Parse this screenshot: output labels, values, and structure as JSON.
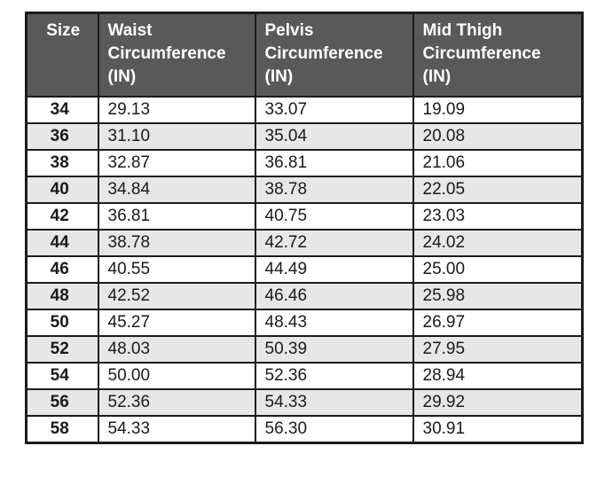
{
  "colors": {
    "header_bg": "#595959",
    "header_text": "#ffffff",
    "row_alt_bg": "#e7e7e7",
    "border": "#1b1b1b",
    "body_text": "#1a1a1a",
    "page_bg": "#ffffff"
  },
  "table": {
    "headers": {
      "size": "Size",
      "waist": "Waist\nCircumference\n(IN)",
      "pelvis": "Pelvis\nCircumference\n(IN)",
      "mid_thigh": "Mid Thigh\nCircumference\n(IN)"
    },
    "rows": [
      {
        "size": "34",
        "waist": "29.13",
        "pelvis": "33.07",
        "mid_thigh": "19.09"
      },
      {
        "size": "36",
        "waist": "31.10",
        "pelvis": "35.04",
        "mid_thigh": "20.08"
      },
      {
        "size": "38",
        "waist": "32.87",
        "pelvis": "36.81",
        "mid_thigh": "21.06"
      },
      {
        "size": "40",
        "waist": "34.84",
        "pelvis": "38.78",
        "mid_thigh": "22.05"
      },
      {
        "size": "42",
        "waist": "36.81",
        "pelvis": "40.75",
        "mid_thigh": "23.03"
      },
      {
        "size": "44",
        "waist": "38.78",
        "pelvis": "42.72",
        "mid_thigh": "24.02"
      },
      {
        "size": "46",
        "waist": "40.55",
        "pelvis": "44.49",
        "mid_thigh": "25.00"
      },
      {
        "size": "48",
        "waist": "42.52",
        "pelvis": "46.46",
        "mid_thigh": "25.98"
      },
      {
        "size": "50",
        "waist": "45.27",
        "pelvis": "48.43",
        "mid_thigh": "26.97"
      },
      {
        "size": "52",
        "waist": "48.03",
        "pelvis": "50.39",
        "mid_thigh": "27.95"
      },
      {
        "size": "54",
        "waist": "50.00",
        "pelvis": "52.36",
        "mid_thigh": "28.94"
      },
      {
        "size": "56",
        "waist": "52.36",
        "pelvis": "54.33",
        "mid_thigh": "29.92"
      },
      {
        "size": "58",
        "waist": "54.33",
        "pelvis": "56.30",
        "mid_thigh": "30.91"
      }
    ]
  },
  "chart_data": {
    "type": "table",
    "title": "",
    "columns": [
      "Size",
      "Waist Circumference (IN)",
      "Pelvis Circumference (IN)",
      "Mid Thigh Circumference (IN)"
    ],
    "rows": [
      [
        "34",
        "29.13",
        "33.07",
        "19.09"
      ],
      [
        "36",
        "31.10",
        "35.04",
        "20.08"
      ],
      [
        "38",
        "32.87",
        "36.81",
        "21.06"
      ],
      [
        "40",
        "34.84",
        "38.78",
        "22.05"
      ],
      [
        "42",
        "36.81",
        "40.75",
        "23.03"
      ],
      [
        "44",
        "38.78",
        "42.72",
        "24.02"
      ],
      [
        "46",
        "40.55",
        "44.49",
        "25.00"
      ],
      [
        "48",
        "42.52",
        "46.46",
        "25.98"
      ],
      [
        "50",
        "45.27",
        "48.43",
        "26.97"
      ],
      [
        "52",
        "48.03",
        "50.39",
        "27.95"
      ],
      [
        "54",
        "50.00",
        "52.36",
        "28.94"
      ],
      [
        "56",
        "52.36",
        "54.33",
        "29.92"
      ],
      [
        "58",
        "54.33",
        "56.30",
        "30.91"
      ]
    ]
  }
}
